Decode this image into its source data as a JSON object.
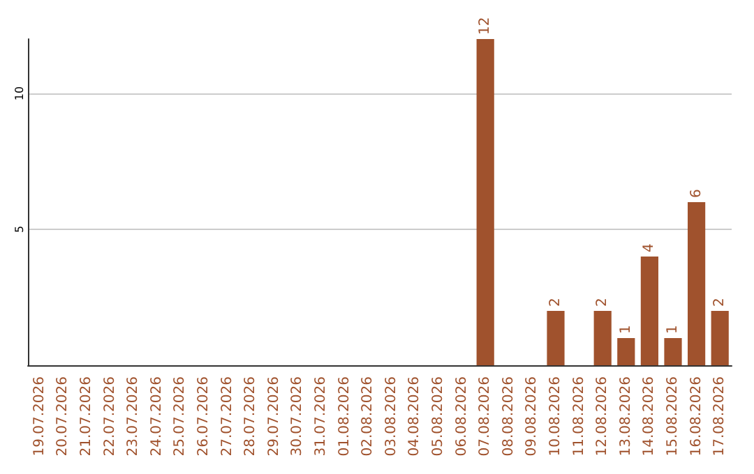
{
  "chart_data": {
    "type": "bar",
    "categories": [
      "19.07.2026",
      "20.07.2026",
      "21.07.2026",
      "22.07.2026",
      "23.07.2026",
      "24.07.2026",
      "25.07.2026",
      "26.07.2026",
      "27.07.2026",
      "28.07.2026",
      "29.07.2026",
      "30.07.2026",
      "31.07.2026",
      "01.08.2026",
      "02.08.2026",
      "03.08.2026",
      "04.08.2026",
      "05.08.2026",
      "06.08.2026",
      "07.08.2026",
      "08.08.2026",
      "09.08.2026",
      "10.08.2026",
      "11.08.2026",
      "12.08.2026",
      "13.08.2026",
      "14.08.2026",
      "15.08.2026",
      "16.08.2026",
      "17.08.2026"
    ],
    "values": [
      0,
      0,
      0,
      0,
      0,
      0,
      0,
      0,
      0,
      0,
      0,
      0,
      0,
      0,
      0,
      0,
      0,
      0,
      0,
      12,
      0,
      0,
      2,
      0,
      2,
      1,
      4,
      1,
      6,
      2
    ],
    "value_labels": [
      null,
      null,
      null,
      null,
      null,
      null,
      null,
      null,
      null,
      null,
      null,
      null,
      null,
      null,
      null,
      null,
      null,
      null,
      null,
      "12",
      null,
      null,
      "2",
      null,
      "2",
      "1",
      "4",
      "1",
      "6",
      "2"
    ],
    "color": "#a0522d",
    "ylim": [
      0,
      12
    ],
    "yticks": [
      5,
      10
    ],
    "grid": "y"
  }
}
